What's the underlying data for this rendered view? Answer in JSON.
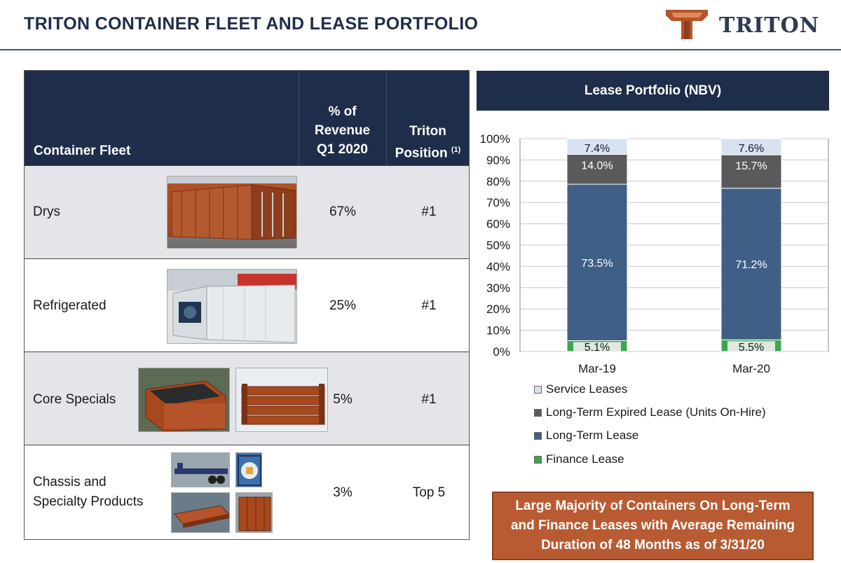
{
  "header": {
    "title": "TRITON CONTAINER FLEET AND LEASE PORTFOLIO",
    "logo_text": "TRITON"
  },
  "fleet_table": {
    "headers": {
      "fleet": "Container Fleet",
      "pct_line1": "% of",
      "pct_line2": "Revenue",
      "pct_line3": "Q1 2020",
      "pos_line1": "Triton",
      "pos_line2": "Position",
      "pos_note": "(1)"
    },
    "rows": [
      {
        "name": "Drys",
        "pct": "67%",
        "position": "#1"
      },
      {
        "name": "Refrigerated",
        "pct": "25%",
        "position": "#1"
      },
      {
        "name": "Core Specials",
        "pct": "5%",
        "position": "#1"
      },
      {
        "name_line1": "Chassis and",
        "name_line2": "Specialty Products",
        "pct": "3%",
        "position": "Top 5"
      }
    ]
  },
  "chart_data": {
    "type": "bar",
    "stacked": true,
    "title": "Lease Portfolio (NBV)",
    "categories": [
      "Mar-19",
      "Mar-20"
    ],
    "series": [
      {
        "name": "Finance Lease",
        "values": [
          5.1,
          5.5
        ],
        "labels": [
          "5.1%",
          "5.5%"
        ],
        "color": "#3aa84a"
      },
      {
        "name": "Long-Term Lease",
        "values": [
          73.5,
          71.2
        ],
        "labels": [
          "73.5%",
          "71.2%"
        ],
        "color": "#3f5f86"
      },
      {
        "name": "Long-Term Expired Lease (Units On-Hire)",
        "values": [
          14.0,
          15.7
        ],
        "labels": [
          "14.0%",
          "15.7%"
        ],
        "color": "#5a5a5a"
      },
      {
        "name": "Service Leases",
        "values": [
          7.4,
          7.6
        ],
        "labels": [
          "7.4%",
          "7.6%"
        ],
        "color": "#d7e3f1"
      }
    ],
    "y_ticks": [
      "0%",
      "10%",
      "20%",
      "30%",
      "40%",
      "50%",
      "60%",
      "70%",
      "80%",
      "90%",
      "100%"
    ],
    "ylim": [
      0,
      100
    ],
    "grid": true,
    "legend_order": [
      "Service Leases",
      "Long-Term Expired Lease (Units On-Hire)",
      "Long-Term Lease",
      "Finance Lease"
    ],
    "legend_position": "bottom"
  },
  "callout": {
    "line1": "Large Majority of Containers On Long-Term",
    "line2": "and Finance Leases with Average Remaining",
    "line3": "Duration of 48 Months as of 3/31/20"
  }
}
